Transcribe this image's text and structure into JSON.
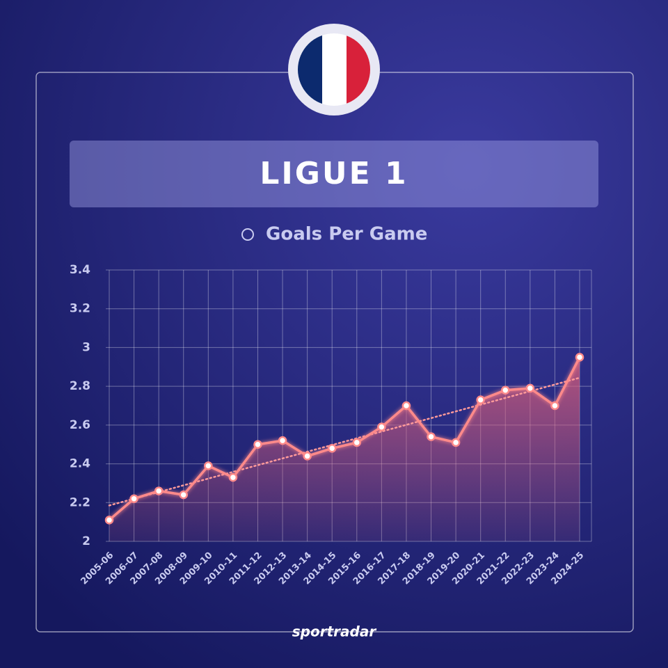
{
  "chart_data": {
    "type": "line",
    "title": "LIGUE 1",
    "subtitle": "Goals Per Game",
    "brand": "sportradar",
    "categories": [
      "2005-06",
      "2006-07",
      "2007-08",
      "2008-09",
      "2009-10",
      "2010-11",
      "2011-12",
      "2012-13",
      "2013-14",
      "2014-15",
      "2015-16",
      "2016-17",
      "2017-18",
      "2018-19",
      "2019-20",
      "2020-21",
      "2021-22",
      "2022-23",
      "2023-24",
      "2024-25"
    ],
    "values": [
      2.11,
      2.22,
      2.26,
      2.24,
      2.39,
      2.33,
      2.5,
      2.52,
      2.44,
      2.48,
      2.51,
      2.59,
      2.7,
      2.54,
      2.51,
      2.73,
      2.78,
      2.79,
      2.7,
      2.95
    ],
    "color": "#ff8a8a",
    "ylim": [
      2,
      3.4
    ],
    "yticks": [
      2,
      2.2,
      2.4,
      2.6,
      2.8,
      3,
      3.2,
      3.4
    ],
    "grid": true,
    "trendline": true
  }
}
